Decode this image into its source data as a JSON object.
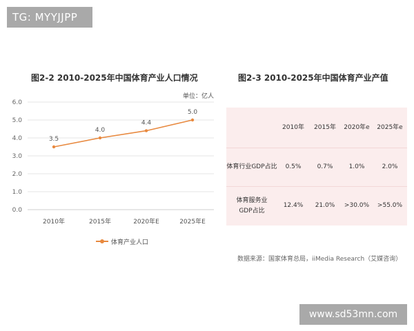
{
  "badge": "TG: MYYJJPP",
  "watermark": "www.sd53mn.com",
  "chart_data": [
    {
      "type": "line",
      "title": "图2-2 2010-2025年中国体育产业人口情况",
      "unit": "单位：亿人",
      "categories": [
        "2010年",
        "2015年",
        "2020年E",
        "2025年E"
      ],
      "series": [
        {
          "name": "体育产业人口",
          "values": [
            3.5,
            4.0,
            4.4,
            5.0
          ],
          "labels": [
            "3.5",
            "4.0",
            "4.4",
            "5.0"
          ]
        }
      ],
      "y_ticks": [
        "0.0",
        "1.0",
        "2.0",
        "3.0",
        "4.0",
        "5.0",
        "6.0"
      ],
      "ylim": [
        0,
        6
      ],
      "grid": true,
      "legend": "bottom",
      "color": "#e8893f"
    },
    {
      "type": "table",
      "title": "图2-3 2010-2025年中国体育产业产值",
      "columns": [
        "2010年",
        "2015年",
        "2020年e",
        "2025年e"
      ],
      "rows": [
        {
          "label": "体育行业GDP占比",
          "values": [
            "0.5%",
            "0.7%",
            "1.0%",
            "2.0%"
          ]
        },
        {
          "label": "体育服务业GDP占比",
          "values": [
            "12.4%",
            "21.0%",
            ">30.0%",
            ">55.0%"
          ]
        }
      ],
      "source": "数据来源：国家体育总局，iiMedia Research（艾媒咨询）",
      "background": "#fbeded"
    }
  ]
}
